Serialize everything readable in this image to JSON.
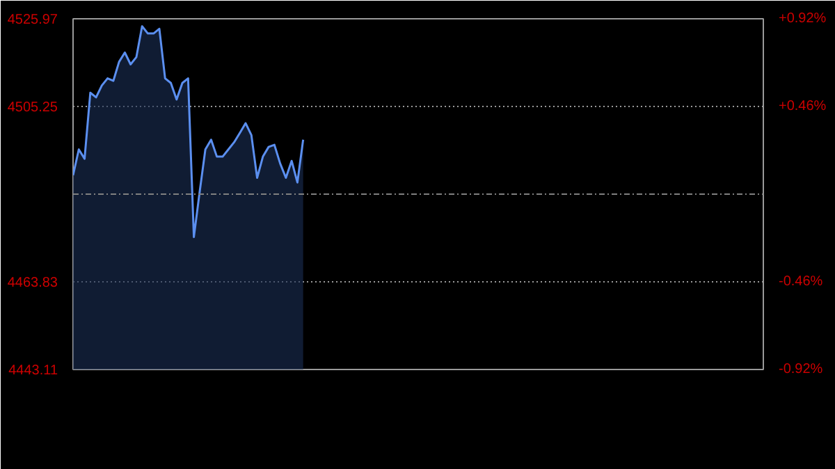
{
  "chart_data": {
    "type": "area",
    "categories": [
      null,
      null,
      null,
      null,
      null,
      null,
      null,
      null,
      null,
      null,
      null,
      null,
      null,
      null,
      null,
      null,
      null,
      null,
      null,
      null,
      null,
      null,
      null,
      null,
      null,
      null,
      null,
      null,
      null,
      null,
      null,
      null,
      null,
      null,
      null,
      null,
      null,
      null,
      null,
      null,
      null,
      null,
      null,
      null,
      null,
      null,
      null,
      null,
      null,
      null,
      null,
      null,
      null,
      null,
      null,
      null,
      null,
      null,
      null,
      null,
      null,
      null,
      null,
      null,
      null,
      null,
      null,
      null,
      null,
      null,
      null,
      null,
      null,
      null,
      null,
      null,
      null,
      null,
      null,
      null,
      null,
      null,
      null,
      null,
      null,
      null,
      null,
      null,
      null,
      null,
      null,
      null,
      null,
      null,
      null,
      null,
      null,
      null,
      null,
      null,
      null,
      null,
      null,
      null,
      null,
      null,
      null,
      null,
      null,
      null,
      null,
      null,
      null,
      null,
      null,
      null,
      null,
      null,
      null,
      null,
      null
    ],
    "series": [
      {
        "color": "#5b8ff0",
        "values": [
          4489.0,
          4495.1,
          4492.9,
          4508.5,
          4507.4,
          4510.2,
          4511.9,
          4511.3,
          4515.8,
          4518.0,
          4515.2,
          4516.9,
          4524.2,
          4522.5,
          4522.5,
          4523.6,
          4511.9,
          4510.8,
          4506.9,
          4510.8,
          4511.9,
          4474.4,
          4485.0,
          4495.1,
          4497.4,
          4493.4,
          4493.4,
          4495.1,
          4496.8,
          4499.0,
          4501.3,
          4498.5,
          4488.4,
          4493.4,
          4495.7,
          4496.2,
          4491.8,
          4488.4,
          4492.4,
          4487.3,
          4497.4,
          null,
          null,
          null,
          null,
          null,
          null,
          null,
          null,
          null,
          null,
          null,
          null,
          null,
          null,
          null,
          null,
          null,
          null,
          null,
          null,
          null,
          null,
          null,
          null,
          null,
          null,
          null,
          null,
          null,
          null,
          null,
          null,
          null,
          null,
          null,
          null,
          null,
          null,
          null,
          null,
          null,
          null,
          null,
          null,
          null,
          null,
          null,
          null,
          null,
          null,
          null,
          null,
          null,
          null,
          null,
          null,
          null,
          null,
          null,
          null,
          null,
          null,
          null,
          null,
          null,
          null,
          null,
          null,
          null,
          null,
          null,
          null,
          null,
          null,
          null,
          null,
          null,
          null,
          null,
          null
        ]
      }
    ],
    "ylim": [
      4443.11,
      4525.97
    ],
    "yticks": [
      4443.11,
      4463.83,
      4505.25,
      4525.97
    ],
    "y2lim": [
      -0.92,
      0.92
    ],
    "y2ticks": [
      {
        "value": -0.92,
        "label": "-0.92%"
      },
      {
        "value": -0.46,
        "label": "-0.46%"
      },
      {
        "value": 0.46,
        "label": "+0.46%"
      },
      {
        "value": 0.92,
        "label": "+0.92%"
      }
    ],
    "ref_lines": [
      {
        "axis": "y",
        "value": 4484.54,
        "color": "#808080",
        "line_style": "dashdot"
      }
    ],
    "grid": "y"
  }
}
